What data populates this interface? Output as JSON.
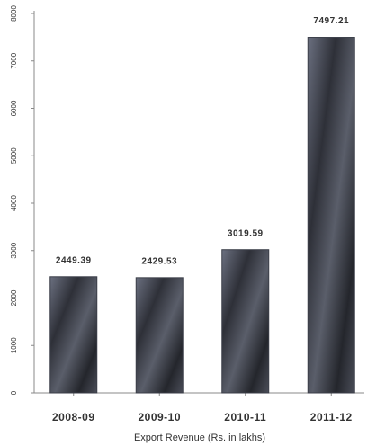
{
  "chart_data": {
    "type": "bar",
    "x_label": "Export Revenue (Rs. in lakhs)",
    "categories": [
      "2008-09",
      "2009-10",
      "2010-11",
      "2011-12"
    ],
    "values": [
      2449.39,
      2429.53,
      3019.59,
      7497.21
    ],
    "color": "#3b3e48",
    "ylim": [
      0,
      8000
    ],
    "yticks": [
      0,
      1000,
      2000,
      3000,
      4000,
      5000,
      6000,
      7000,
      8000
    ]
  }
}
